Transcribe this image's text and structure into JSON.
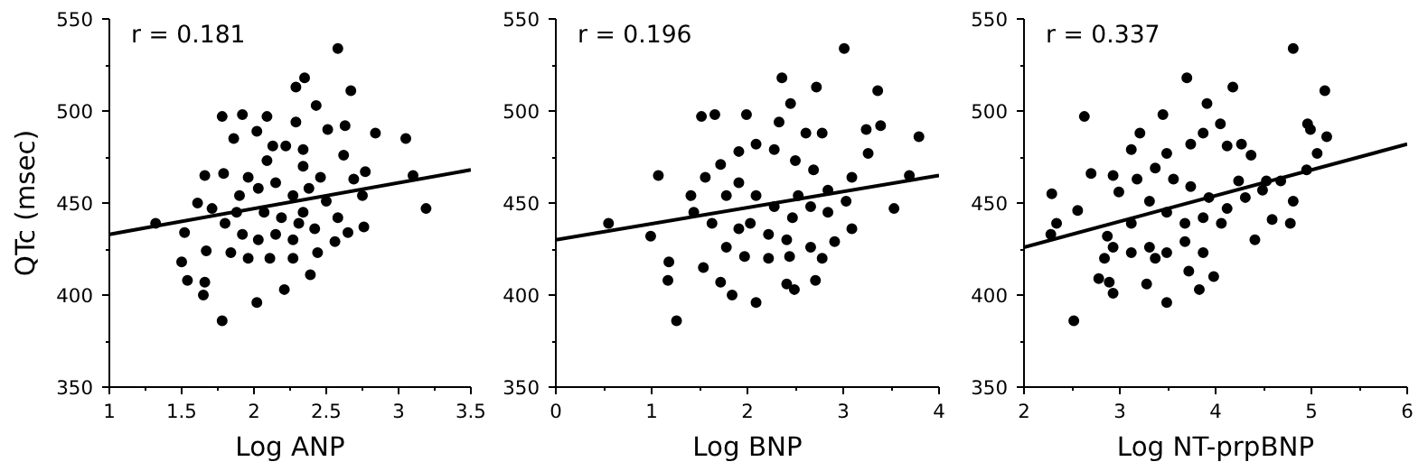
{
  "chart_data": [
    {
      "type": "scatter",
      "xlabel": "Log ANP",
      "ylabel": "QTc (msec)",
      "annotations": [
        "r = 0.181"
      ],
      "xlim": [
        1,
        3.5
      ],
      "xticks": [
        1,
        1.5,
        2,
        2.5,
        3,
        3.5
      ],
      "ylim": [
        350,
        550
      ],
      "yticks": [
        350,
        400,
        450,
        500,
        550
      ],
      "series": [
        {
          "marker": "circle",
          "color": "#000000",
          "x": [
            2.58,
            2.35,
            2.29,
            2.67,
            2.43,
            1.78,
            1.92,
            2.09,
            2.29,
            2.51,
            2.63,
            2.84,
            3.05,
            3.1,
            3.19,
            1.32,
            1.52,
            1.5,
            1.54,
            1.65,
            1.66,
            1.78,
            2.02,
            2.21,
            2.39,
            1.67,
            1.84,
            1.66,
            1.79,
            1.86,
            2.02,
            2.13,
            2.22,
            2.34,
            2.62,
            2.77,
            2.69,
            2.75,
            2.76,
            2.65,
            2.56,
            2.44,
            2.27,
            2.11,
            1.96,
            1.92,
            1.8,
            1.71,
            1.61,
            1.9,
            2.03,
            2.15,
            2.27,
            2.38,
            2.5,
            2.19,
            2.31,
            2.42,
            2.07,
            1.96,
            2.09,
            2.34,
            2.46,
            2.15,
            2.27,
            2.03,
            2.34,
            1.88,
            2.58
          ],
          "values": [
            534,
            518,
            513,
            511,
            503,
            497,
            498,
            497,
            494,
            490,
            492,
            488,
            485,
            465,
            447,
            439,
            434,
            418,
            408,
            400,
            407,
            386,
            396,
            403,
            411,
            424,
            423,
            465,
            466,
            485,
            489,
            481,
            481,
            479,
            476,
            467,
            463,
            454,
            437,
            434,
            429,
            423,
            420,
            420,
            420,
            433,
            439,
            447,
            450,
            454,
            458,
            461,
            454,
            458,
            451,
            442,
            439,
            436,
            445,
            464,
            473,
            470,
            464,
            433,
            430,
            430,
            445,
            445,
            442
          ]
        },
        {
          "type": "line",
          "color": "#000000",
          "x": [
            1,
            3.5
          ],
          "values": [
            433,
            468
          ]
        }
      ]
    },
    {
      "type": "scatter",
      "xlabel": "Log BNP",
      "annotations": [
        "r = 0.196"
      ],
      "xlim": [
        0,
        4
      ],
      "xticks": [
        0,
        1,
        2,
        3,
        4
      ],
      "ylim": [
        350,
        550
      ],
      "yticks": [
        350,
        400,
        450,
        500,
        550
      ],
      "series": [
        {
          "marker": "circle",
          "color": "#000000",
          "x": [
            3.01,
            2.36,
            2.72,
            3.36,
            2.45,
            1.52,
            1.66,
            1.99,
            2.33,
            3.39,
            3.24,
            3.79,
            2.61,
            2.78,
            0.55,
            0.99,
            1.07,
            1.18,
            1.17,
            1.26,
            1.84,
            2.09,
            2.41,
            2.49,
            2.71,
            1.54,
            1.72,
            3.53,
            3.69,
            3.26,
            3.09,
            3.09,
            2.91,
            2.66,
            2.44,
            2.22,
            1.97,
            1.78,
            1.63,
            1.44,
            1.41,
            1.56,
            1.72,
            1.91,
            2.09,
            2.28,
            2.5,
            2.69,
            2.84,
            3.03,
            1.91,
            2.09,
            2.28,
            2.47,
            2.66,
            2.84,
            2.03,
            2.22,
            2.41,
            1.91,
            1.78,
            2.78,
            2.53
          ],
          "values": [
            534,
            518,
            513,
            511,
            504,
            497,
            498,
            498,
            494,
            492,
            490,
            486,
            488,
            488,
            439,
            432,
            465,
            418,
            408,
            386,
            400,
            396,
            406,
            403,
            408,
            415,
            407,
            447,
            465,
            477,
            464,
            436,
            429,
            426,
            421,
            420,
            421,
            426,
            439,
            445,
            454,
            464,
            471,
            478,
            482,
            479,
            473,
            468,
            457,
            451,
            461,
            454,
            448,
            442,
            448,
            445,
            439,
            433,
            430,
            436,
            454,
            420,
            454
          ]
        },
        {
          "type": "line",
          "color": "#000000",
          "x": [
            0,
            4
          ],
          "values": [
            430,
            465
          ]
        }
      ]
    },
    {
      "type": "scatter",
      "xlabel": "Log NT-prpBNP",
      "annotations": [
        "r = 0.337"
      ],
      "xlim": [
        2,
        6
      ],
      "xticks": [
        2,
        3,
        4,
        5,
        6
      ],
      "ylim": [
        350,
        550
      ],
      "yticks": [
        350,
        400,
        450,
        500,
        550
      ],
      "series": [
        {
          "marker": "circle",
          "color": "#000000",
          "x": [
            4.81,
            3.7,
            4.18,
            5.14,
            3.91,
            3.45,
            2.63,
            4.96,
            4.99,
            5.16,
            5.06,
            2.28,
            2.29,
            2.34,
            2.56,
            2.7,
            2.52,
            2.78,
            2.93,
            2.89,
            3.28,
            3.49,
            3.83,
            3.98,
            3.72,
            4.41,
            4.78,
            4.59,
            4.81,
            4.95,
            4.53,
            4.49,
            4.24,
            4.12,
            4.27,
            4.05,
            3.87,
            3.74,
            3.49,
            3.21,
            3.12,
            2.93,
            2.99,
            3.18,
            3.37,
            3.56,
            3.74,
            3.93,
            4.12,
            4.31,
            3.31,
            3.49,
            3.68,
            3.87,
            4.06,
            3.12,
            2.87,
            2.93,
            3.12,
            3.31,
            3.49,
            3.68,
            3.87,
            2.84,
            3.37,
            4.37,
            4.68
          ],
          "values": [
            534,
            518,
            513,
            511,
            504,
            498,
            497,
            493,
            490,
            486,
            477,
            433,
            455,
            439,
            446,
            466,
            386,
            409,
            401,
            407,
            406,
            396,
            403,
            410,
            413,
            430,
            439,
            441,
            451,
            468,
            462,
            457,
            462,
            481,
            482,
            493,
            488,
            482,
            477,
            488,
            479,
            465,
            456,
            463,
            469,
            463,
            459,
            453,
            447,
            453,
            451,
            445,
            439,
            442,
            439,
            439,
            432,
            426,
            423,
            426,
            423,
            429,
            423,
            420,
            420,
            476,
            462
          ]
        },
        {
          "type": "line",
          "color": "#000000",
          "x": [
            2,
            6
          ],
          "values": [
            426,
            482
          ]
        }
      ]
    }
  ]
}
